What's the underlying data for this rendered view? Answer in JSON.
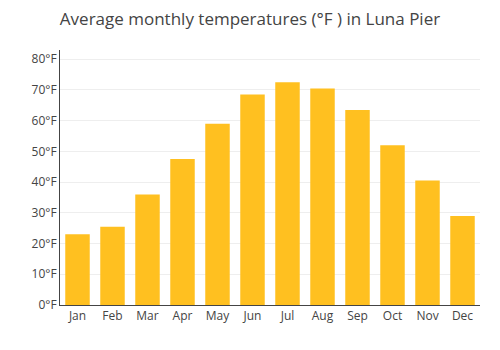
{
  "chart_data": {
    "type": "bar",
    "title": "Average monthly temperatures (°F ) in Luna Pier",
    "categories": [
      "Jan",
      "Feb",
      "Mar",
      "Apr",
      "May",
      "Jun",
      "Jul",
      "Aug",
      "Sep",
      "Oct",
      "Nov",
      "Dec"
    ],
    "values": [
      23,
      25.5,
      36,
      47.5,
      59,
      68.5,
      72.5,
      70.5,
      63.5,
      52,
      40.5,
      29
    ],
    "color": "#FFC020",
    "ylim": [
      0,
      83
    ],
    "yticks": [
      {
        "value": 0,
        "label": "0°F"
      },
      {
        "value": 10,
        "label": "10°F"
      },
      {
        "value": 20,
        "label": "20°F"
      },
      {
        "value": 30,
        "label": "30°F"
      },
      {
        "value": 40,
        "label": "40°F"
      },
      {
        "value": 50,
        "label": "50°F"
      },
      {
        "value": 60,
        "label": "60°F"
      },
      {
        "value": 70,
        "label": "70°F"
      },
      {
        "value": 80,
        "label": "80°F"
      }
    ],
    "grid": true
  }
}
